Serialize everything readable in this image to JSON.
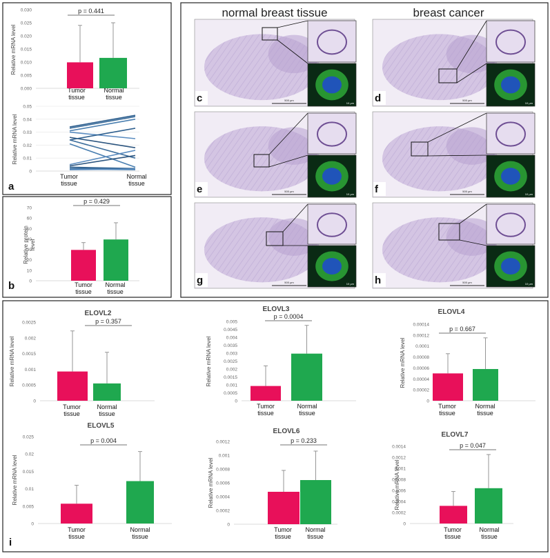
{
  "colors": {
    "tumor": "#E8105A",
    "normal": "#1FA84F",
    "lines": "#3D6E9C",
    "tissue": "#C9B8DC",
    "fluor_bg": "#0A2A14",
    "fluor_green": "#2FB03A",
    "fluor_blue": "#1F4CC8"
  },
  "histology": {
    "header_normal": "normal breast tissue",
    "header_cancer": "breast cancer",
    "panels": [
      {
        "letter": "c",
        "scale_main": "500 µm",
        "scale_inset": "10 µm"
      },
      {
        "letter": "d",
        "scale_main": "500 µm",
        "scale_inset": "10 µm"
      },
      {
        "letter": "e",
        "scale_main": "500 µm",
        "scale_inset": "10 µm"
      },
      {
        "letter": "f",
        "scale_main": "500 µm",
        "scale_inset": "10 µm"
      },
      {
        "letter": "g",
        "scale_main": "500 µm",
        "scale_inset": "10 µm"
      },
      {
        "letter": "h",
        "scale_main": "500 µm",
        "scale_inset": "10 µm"
      }
    ]
  },
  "chart_data": [
    {
      "id": "a_bar",
      "panel_letter": "",
      "type": "bar",
      "title": "",
      "categories": [
        "Tumor\ntissue",
        "Normal\ntissue"
      ],
      "values": [
        0.0099,
        0.0116
      ],
      "errors": [
        0.0141,
        0.0134
      ],
      "yticks": [
        "0.030",
        "0.025",
        "0.020",
        "0.015",
        "0.010",
        "0.005",
        "0.000"
      ],
      "ylim": [
        0,
        0.03
      ],
      "ylabel": "Relative mRNA level",
      "pvalue": "p = 0.441"
    },
    {
      "id": "a_lines",
      "panel_letter": "a",
      "type": "line",
      "title": "",
      "categories": [
        "Tumor\ntissue",
        "Normal\ntissue"
      ],
      "pairs": [
        [
          0.034,
          0.043
        ],
        [
          0.033,
          0.042
        ],
        [
          0.031,
          0.04
        ],
        [
          0.03,
          0.025
        ],
        [
          0.026,
          0.018
        ],
        [
          0.024,
          0.033
        ],
        [
          0.024,
          0.01
        ],
        [
          0.021,
          0.003
        ],
        [
          0.005,
          0.016
        ],
        [
          0.004,
          0.012
        ],
        [
          0.003,
          0.002
        ],
        [
          0.002,
          0.002
        ],
        [
          0.0015,
          0.001
        ],
        [
          0.001,
          0.0015
        ]
      ],
      "yticks": [
        "0.05",
        "0.04",
        "0.03",
        "0.02",
        "0.01",
        "0"
      ],
      "ylim": [
        0,
        0.05
      ],
      "ylabel": "Relative mRNA level"
    },
    {
      "id": "b",
      "panel_letter": "b",
      "type": "bar",
      "title": "",
      "categories": [
        "Tumor\ntissue",
        "Normal\ntissue"
      ],
      "values": [
        29.5,
        39.5
      ],
      "errors": [
        7,
        16
      ],
      "yticks": [
        "70",
        "60",
        "50",
        "40",
        "30",
        "20",
        "10",
        "0"
      ],
      "ylim": [
        0,
        70
      ],
      "ylabel": "Relative protein\nlevel",
      "pvalue": "p = 0.429"
    },
    {
      "id": "elovl2",
      "panel_letter": "",
      "type": "bar",
      "title": "ELOVL2",
      "categories": [
        "Tumor\ntissue",
        "Normal\ntissue"
      ],
      "values": [
        0.00093,
        0.00055
      ],
      "errors": [
        0.00129,
        0.00099
      ],
      "yticks": [
        "0.0025",
        "0.002",
        "0.0015",
        "0.001",
        "0.0005",
        "0"
      ],
      "ylim": [
        0,
        0.0025
      ],
      "ylabel": "Relative mRNA level",
      "pvalue": "p = 0.357"
    },
    {
      "id": "elovl3",
      "panel_letter": "",
      "type": "bar",
      "title": "ELOVL3",
      "categories": [
        "Tumor\ntissue",
        "Normal\ntissue"
      ],
      "values": [
        0.00093,
        0.00297
      ],
      "errors": [
        0.00127,
        0.00178
      ],
      "yticks": [
        "0.005",
        "0.0045",
        "0.004",
        "0.0035",
        "0.003",
        "0.0025",
        "0.002",
        "0.0015",
        "0.001",
        "0.0005",
        "0"
      ],
      "ylim": [
        0,
        0.005
      ],
      "ylabel": "Relative mRNA level",
      "pvalue": "p = 0.0004"
    },
    {
      "id": "elovl4",
      "panel_letter": "",
      "type": "bar",
      "title": "ELOVL4",
      "categories": [
        "Tumor\ntissue",
        "Normal\ntissue"
      ],
      "values": [
        5e-05,
        5.8e-05
      ],
      "errors": [
        3.6e-05,
        5.7e-05
      ],
      "yticks": [
        "0.00014",
        "0.00012",
        "0.0001",
        "0.00008",
        "0.00006",
        "0.00004",
        "0.00002",
        "0"
      ],
      "ylim": [
        0,
        0.00014
      ],
      "ylabel": "Relative mRNA level",
      "pvalue": "p = 0.667"
    },
    {
      "id": "elovl5",
      "panel_letter": "i",
      "type": "bar",
      "title": "ELOVL5",
      "categories": [
        "Tumor\ntissue",
        "Normal\ntissue"
      ],
      "values": [
        0.0057,
        0.0122
      ],
      "errors": [
        0.0053,
        0.0085
      ],
      "yticks": [
        "0.025",
        "0.02",
        "0.015",
        "0.01",
        "0.005",
        "0"
      ],
      "ylim": [
        0,
        0.025
      ],
      "ylabel": "Relative mRNA level",
      "pvalue": "p = 0.004"
    },
    {
      "id": "elovl6",
      "panel_letter": "",
      "type": "bar",
      "title": "ELOVL6",
      "categories": [
        "Tumor\ntissue",
        "Normal\ntissue"
      ],
      "values": [
        0.00047,
        0.00064
      ],
      "errors": [
        0.00031,
        0.00042
      ],
      "yticks": [
        "0.0012",
        "0.001",
        "0.0008",
        "0.0006",
        "0.0004",
        "0.0002",
        "0"
      ],
      "ylim": [
        0,
        0.0012
      ],
      "ylabel": "Relative mRNA level",
      "pvalue": "p = 0.233"
    },
    {
      "id": "elovl7",
      "panel_letter": "",
      "type": "bar",
      "title": "ELOVL7",
      "categories": [
        "Tumor\ntissue",
        "Normal\ntissue"
      ],
      "values": [
        0.00032,
        0.00064
      ],
      "errors": [
        0.00026,
        0.00061
      ],
      "yticks": [
        "0.0014",
        "0.0012",
        "0.001",
        "0.0008",
        "0.0006",
        "0.0004",
        "0.0002",
        "0"
      ],
      "ylim": [
        0,
        0.0014
      ],
      "ylabel": "Relative mRNA level",
      "pvalue": "p = 0.047"
    }
  ]
}
